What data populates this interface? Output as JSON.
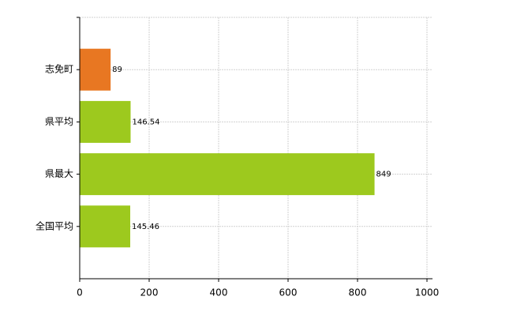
{
  "chart_data": {
    "type": "barh",
    "categories": [
      "志免町",
      "県平均",
      "県最大",
      "全国平均"
    ],
    "values": [
      89,
      146.54,
      849,
      145.46
    ],
    "colors": [
      "#e87722",
      "#9dc91e",
      "#9dc91e",
      "#9dc91e"
    ],
    "xlim": [
      0,
      1000
    ],
    "xticks": [
      0,
      200,
      400,
      600,
      800,
      1000
    ],
    "grid": true
  }
}
